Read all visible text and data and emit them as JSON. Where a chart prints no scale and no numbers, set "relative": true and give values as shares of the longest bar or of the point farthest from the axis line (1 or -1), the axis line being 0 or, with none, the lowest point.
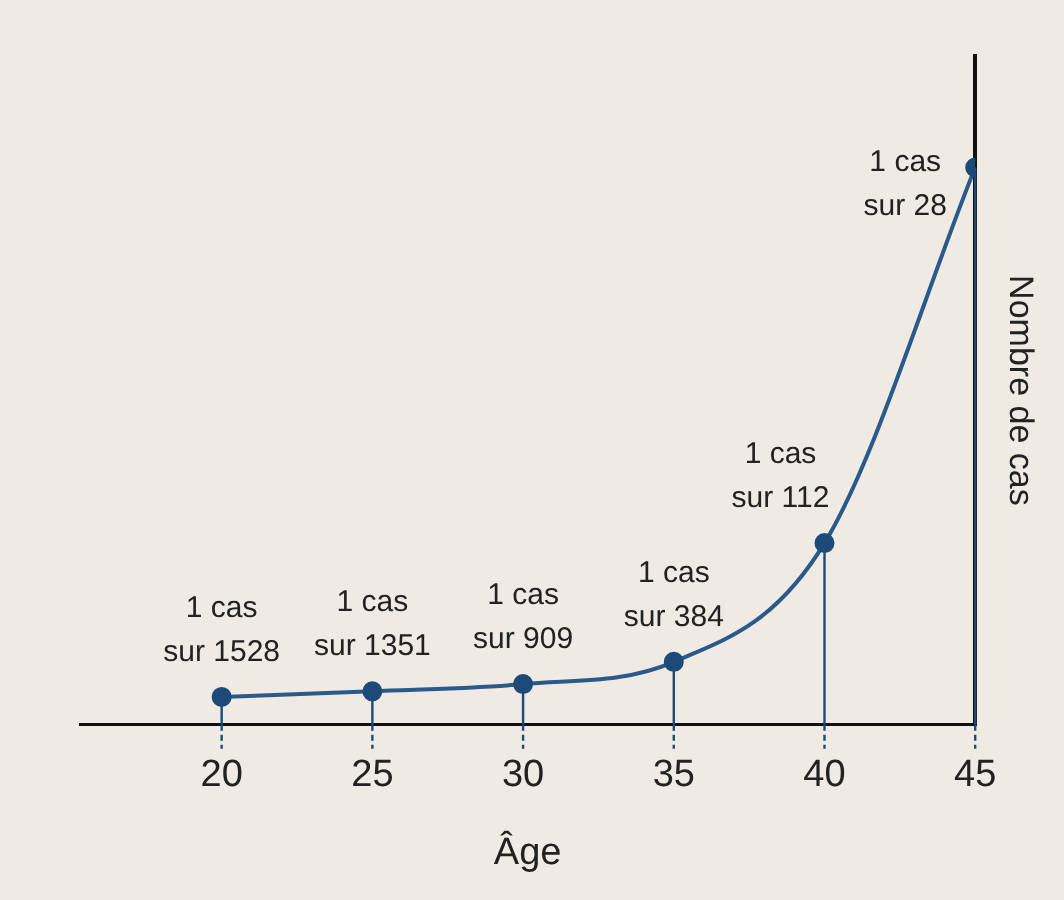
{
  "chart_data": {
    "type": "line",
    "xlabel": "Âge",
    "ylabel": "Nombre de cas",
    "relative": true,
    "x": [
      20,
      25,
      30,
      35,
      40,
      45
    ],
    "xlim": [
      15.3,
      45
    ],
    "xticks": [
      20,
      25,
      30,
      35,
      40,
      45
    ],
    "series": [
      {
        "color": "#2b5a8a",
        "values": [
          0.05,
          0.06,
          0.073,
          0.113,
          0.326,
          1
        ]
      }
    ],
    "annotations": [
      {
        "text": "1 cas\nsur 1528",
        "x": 20,
        "y": 0.05
      },
      {
        "text": "1 cas\nsur 1351",
        "x": 25,
        "y": 0.06
      },
      {
        "text": "1 cas\nsur 909",
        "x": 30,
        "y": 0.073
      },
      {
        "text": "1 cas\nsur 384",
        "x": 35,
        "y": 0.113
      },
      {
        "text": "1 cas\nsur 112",
        "x": 40,
        "y": 0.326
      },
      {
        "text": "1 cas\nsur 28",
        "x": 45,
        "y": 1
      }
    ],
    "marker": "circle",
    "grid": false,
    "legend": false
  }
}
